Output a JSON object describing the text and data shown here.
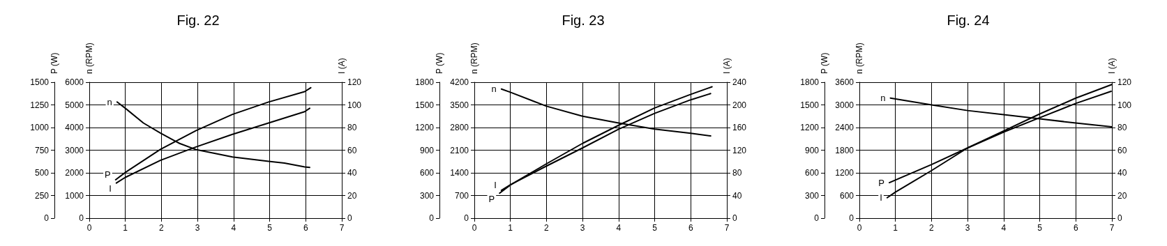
{
  "chart_data": [
    {
      "type": "line",
      "title": "Fig. 22",
      "ylabel": "n (RPM)",
      "y2label": "I (A)",
      "y3label": "P (W)",
      "xlim": [
        0,
        7
      ],
      "xticks": [
        0,
        1,
        2,
        3,
        4,
        5,
        6,
        7
      ],
      "ylim": [
        0,
        6000
      ],
      "yticks": [
        0,
        1000,
        2000,
        3000,
        4000,
        5000,
        6000
      ],
      "y2lim": [
        0,
        120
      ],
      "y2ticks": [
        0,
        20,
        40,
        60,
        80,
        100,
        120
      ],
      "y3lim": [
        0,
        1500
      ],
      "y3ticks": [
        0,
        250,
        500,
        750,
        1000,
        1250,
        1500
      ],
      "grid": true,
      "marker": "none",
      "line_style": "solid",
      "series": [
        {
          "name": "P",
          "color": "#000000",
          "axis": "y3",
          "x": [
            0.73,
            1,
            1.97,
            2.97,
            3.97,
            4.97,
            5.97,
            6.14
          ],
          "values": [
            423,
            505,
            758,
            968,
            1145,
            1282,
            1396,
            1440
          ]
        },
        {
          "name": "n",
          "color": "#000000",
          "axis": "y",
          "x": [
            0.77,
            1,
            1.5,
            1.97,
            2.5,
            2.97,
            3.97,
            4.97,
            5.41,
            5.97,
            6.11
          ],
          "values": [
            5130,
            4850,
            4200,
            3760,
            3300,
            3020,
            2700,
            2510,
            2430,
            2260,
            2240
          ]
        },
        {
          "name": "I",
          "color": "#000000",
          "axis": "y2",
          "x": [
            0.75,
            1,
            1.97,
            2.97,
            3.97,
            4.97,
            5.97,
            6.11
          ],
          "values": [
            31,
            36,
            51,
            63,
            74,
            84,
            94,
            97
          ]
        }
      ]
    },
    {
      "type": "line",
      "title": "Fig. 23",
      "ylabel": "n (RPM)",
      "y2label": "I (A)",
      "y3label": "P (W)",
      "xlim": [
        0,
        7
      ],
      "xticks": [
        0,
        1,
        2,
        3,
        4,
        5,
        6,
        7
      ],
      "ylim": [
        0,
        4200
      ],
      "yticks": [
        0,
        700,
        1400,
        2100,
        2800,
        3500,
        4200
      ],
      "y2lim": [
        0,
        240
      ],
      "y2ticks": [
        0,
        40,
        80,
        120,
        160,
        200,
        240
      ],
      "y3lim": [
        0,
        1800
      ],
      "y3ticks": [
        0,
        300,
        600,
        900,
        1200,
        1500,
        1800
      ],
      "grid": true,
      "marker": "none",
      "line_style": "solid",
      "series": [
        {
          "name": "n",
          "color": "#000000",
          "axis": "y",
          "x": [
            0.75,
            1,
            2,
            3,
            4,
            5,
            6,
            6.55
          ],
          "values": [
            3990,
            3890,
            3460,
            3150,
            2940,
            2750,
            2620,
            2540
          ]
        },
        {
          "name": "P",
          "color": "#000000",
          "axis": "y3",
          "x": [
            0.7,
            1,
            2,
            3,
            4,
            5,
            6,
            6.59
          ],
          "values": [
            330,
            440,
            720,
            990,
            1230,
            1460,
            1640,
            1740
          ]
        },
        {
          "name": "I",
          "color": "#000000",
          "axis": "y2",
          "x": [
            0.75,
            1,
            2,
            3,
            4,
            5,
            6,
            6.55
          ],
          "values": [
            49,
            59,
            92,
            124,
            157,
            185,
            209,
            220
          ]
        }
      ]
    },
    {
      "type": "line",
      "title": "Fig. 24",
      "ylabel": "n (RPM)",
      "y2label": "I (A)",
      "y3label": "P (W)",
      "xlim": [
        0,
        7
      ],
      "xticks": [
        0,
        1,
        2,
        3,
        4,
        5,
        6,
        7
      ],
      "ylim": [
        0,
        3600
      ],
      "yticks": [
        0,
        600,
        1200,
        1800,
        2400,
        3000,
        3600
      ],
      "y2lim": [
        0,
        120
      ],
      "y2ticks": [
        0,
        20,
        40,
        60,
        80,
        100,
        120
      ],
      "y3lim": [
        0,
        1800
      ],
      "y3ticks": [
        0,
        300,
        600,
        900,
        1200,
        1500,
        1800
      ],
      "grid": true,
      "marker": "none",
      "line_style": "solid",
      "series": [
        {
          "name": "n",
          "color": "#000000",
          "axis": "y",
          "x": [
            0.86,
            2,
            3,
            4,
            5,
            6,
            7
          ],
          "values": [
            3180,
            3000,
            2850,
            2740,
            2630,
            2520,
            2420
          ]
        },
        {
          "name": "P",
          "color": "#000000",
          "axis": "y3",
          "x": [
            0.83,
            2,
            3,
            4,
            5,
            6,
            6.98
          ],
          "values": [
            470,
            710,
            930,
            1140,
            1330,
            1520,
            1680
          ]
        },
        {
          "name": "I",
          "color": "#000000",
          "axis": "y2",
          "x": [
            0.77,
            1,
            2,
            3,
            4,
            5,
            6,
            7
          ],
          "values": [
            18,
            23,
            42,
            62,
            77,
            92,
            106,
            118
          ]
        }
      ]
    }
  ]
}
